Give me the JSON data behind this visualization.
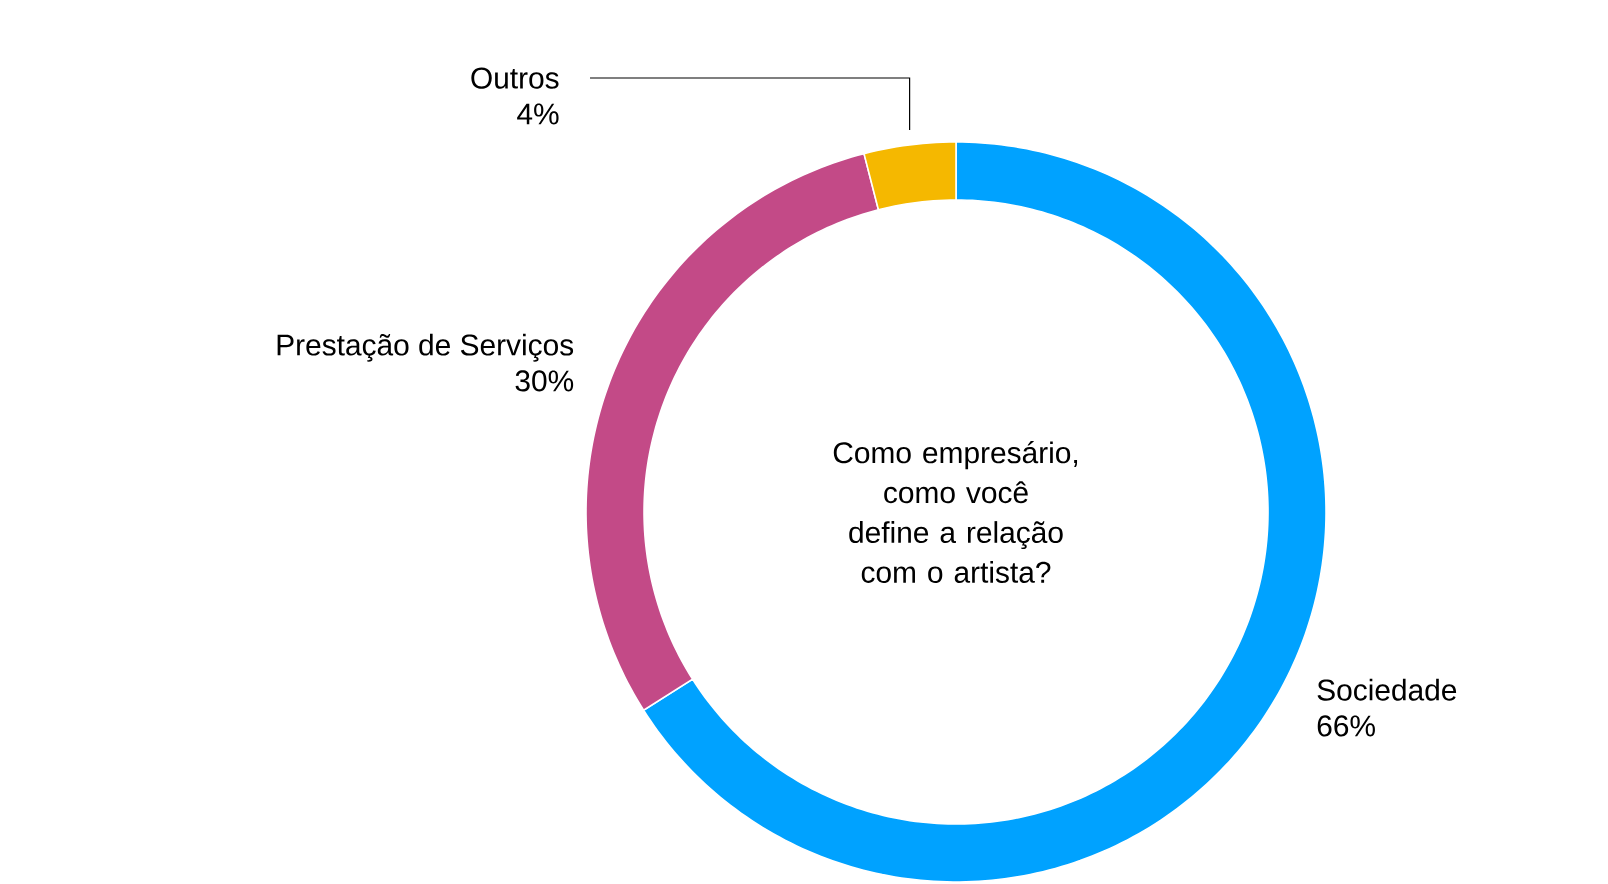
{
  "chart_data": {
    "type": "donut",
    "title": "Como empresário, como você define a relação com o artista?",
    "categories": [
      "Sociedade",
      "Prestação de Serviços",
      "Outros"
    ],
    "values": [
      66,
      30,
      4
    ],
    "value_labels": [
      "66%",
      "30%",
      "4%"
    ],
    "colors": [
      "#00a2ff",
      "#c34a87",
      "#f5b800"
    ]
  }
}
